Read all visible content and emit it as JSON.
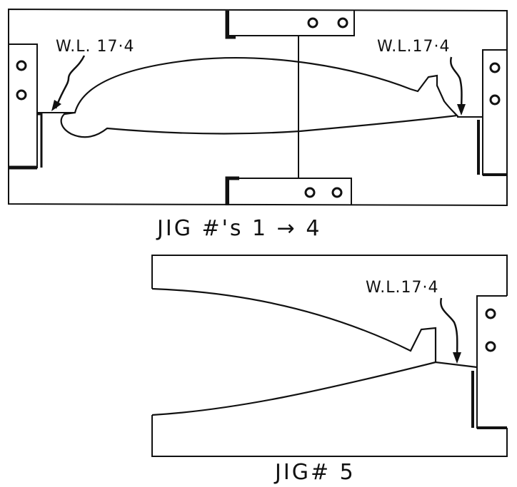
{
  "diagram": {
    "top_jig": {
      "caption": "JIG #'s 1 → 4",
      "waterline_left": "W.L. 17·4",
      "waterline_right": "W.L.17·4"
    },
    "bottom_jig": {
      "caption": "JIG# 5",
      "waterline": "W.L.17·4"
    },
    "ink_color": "#111111",
    "paper_color": "#ffffff"
  }
}
